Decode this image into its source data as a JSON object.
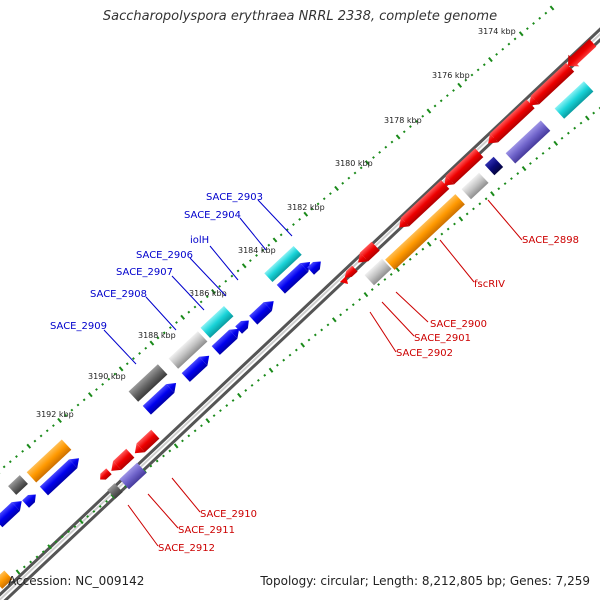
{
  "title": "Saccharopolyspora erythraea NRRL 2338, complete genome",
  "footer": {
    "accession": "Accession: NC_009142",
    "summary": "Topology: circular; Length: 8,212,805 bp; Genes: 7,259"
  },
  "ticks": [
    "3174 kbp",
    "3176 kbp",
    "3178 kbp",
    "3180 kbp",
    "3182 kbp",
    "3184 kbp",
    "3186 kbp",
    "3188 kbp",
    "3190 kbp",
    "3192 kbp"
  ],
  "forward_labels": [
    "SACE_2903",
    "SACE_2904",
    "iolH",
    "SACE_2906",
    "SACE_2907",
    "SACE_2908",
    "SACE_2909"
  ],
  "reverse_labels": [
    "SACE_2898",
    "fscRIV",
    "SACE_2900",
    "SACE_2901",
    "SACE_2902",
    "SACE_2910",
    "SACE_2911",
    "SACE_2912"
  ],
  "colors": {
    "forward": "#0000ee",
    "reverse": "#ee0000",
    "orange": "#ff9900",
    "cyan": "#19d3d8",
    "purple": "#6e62c9",
    "gray": "#bdbdbd",
    "darkgray": "#666666",
    "navy": "#0a0a7a",
    "tick_green": "#1a8a1a",
    "backbone": "#8c8c8c"
  }
}
